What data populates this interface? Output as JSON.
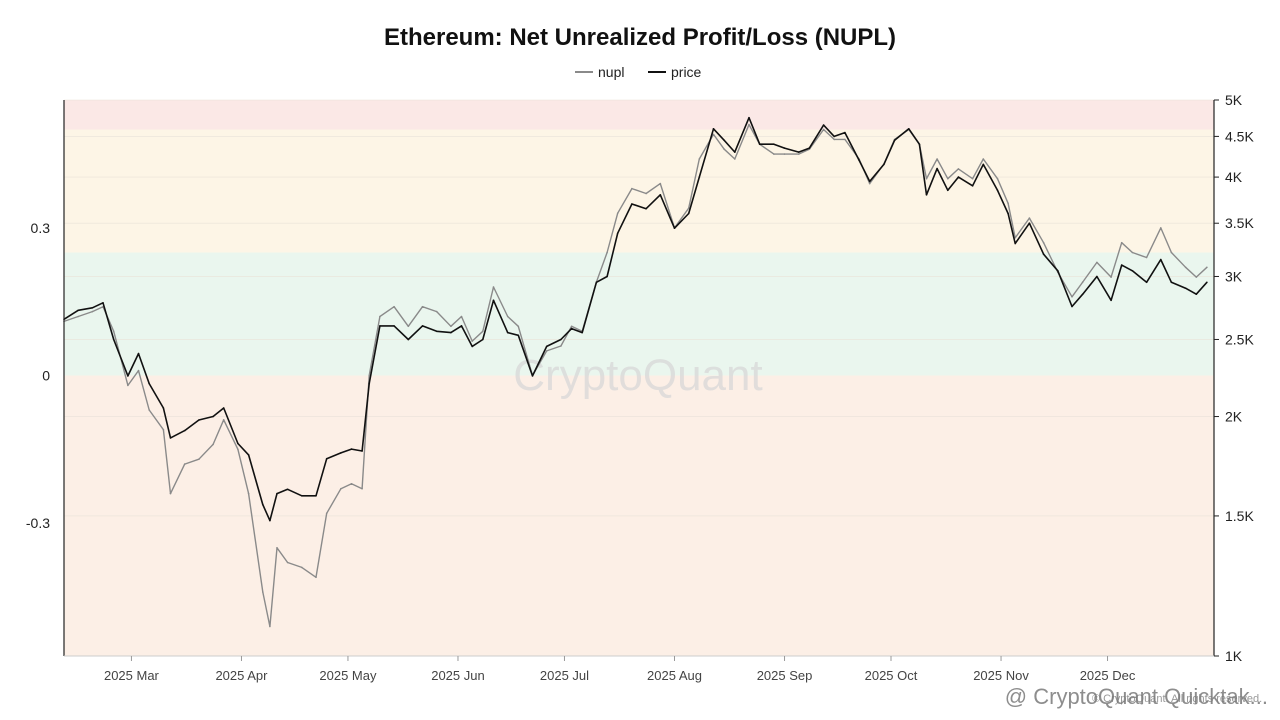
{
  "chart_data": {
    "type": "line",
    "title": "Ethereum: Net Unrealized Profit/Loss (NUPL)",
    "legend": [
      "nupl",
      "price"
    ],
    "legend_position": "top-center",
    "x_range": [
      "2025-02-10",
      "2025-12-31"
    ],
    "x_tick_labels": [
      "2025 Mar",
      "2025 Apr",
      "2025 May",
      "2025 Jun",
      "2025 Jul",
      "2025 Aug",
      "2025 Sep",
      "2025 Oct",
      "2025 Nov",
      "2025 Dec"
    ],
    "y_left": {
      "scale": "linear",
      "range": [
        -0.57,
        0.56
      ],
      "tick_labels": [
        "0.3",
        "0",
        "-0.3"
      ],
      "tick_values": [
        0.3,
        0,
        -0.3
      ]
    },
    "y_right": {
      "scale": "log",
      "range": [
        1000,
        5000
      ],
      "tick_labels": [
        "5K",
        "4.5K",
        "4K",
        "3.5K",
        "3K",
        "2.5K",
        "2K",
        "1.5K",
        "1K"
      ],
      "tick_values": [
        5000,
        4500,
        4000,
        3500,
        3000,
        2500,
        2000,
        1500,
        1000
      ]
    },
    "zones": [
      {
        "from": 0.5,
        "to": 0.56,
        "color": "#fbe8e6"
      },
      {
        "from": 0.25,
        "to": 0.5,
        "color": "#fdf5e6"
      },
      {
        "from": 0.0,
        "to": 0.25,
        "color": "#eaf6ee"
      },
      {
        "from": -0.57,
        "to": 0.0,
        "color": "#fcefe6"
      }
    ],
    "grid": "horizontal-faint",
    "series": [
      {
        "name": "nupl",
        "axis": "left",
        "color": "#8a8a8a",
        "points": [
          [
            "2025-02-10",
            0.11
          ],
          [
            "2025-02-14",
            0.12
          ],
          [
            "2025-02-18",
            0.13
          ],
          [
            "2025-02-21",
            0.14
          ],
          [
            "2025-02-24",
            0.09
          ],
          [
            "2025-02-28",
            -0.02
          ],
          [
            "2025-03-03",
            0.01
          ],
          [
            "2025-03-06",
            -0.07
          ],
          [
            "2025-03-10",
            -0.11
          ],
          [
            "2025-03-12",
            -0.24
          ],
          [
            "2025-03-16",
            -0.18
          ],
          [
            "2025-03-20",
            -0.17
          ],
          [
            "2025-03-24",
            -0.14
          ],
          [
            "2025-03-27",
            -0.09
          ],
          [
            "2025-03-31",
            -0.15
          ],
          [
            "2025-04-03",
            -0.24
          ],
          [
            "2025-04-07",
            -0.44
          ],
          [
            "2025-04-09",
            -0.51
          ],
          [
            "2025-04-11",
            -0.35
          ],
          [
            "2025-04-14",
            -0.38
          ],
          [
            "2025-04-18",
            -0.39
          ],
          [
            "2025-04-22",
            -0.41
          ],
          [
            "2025-04-25",
            -0.28
          ],
          [
            "2025-04-29",
            -0.23
          ],
          [
            "2025-05-02",
            -0.22
          ],
          [
            "2025-05-05",
            -0.23
          ],
          [
            "2025-05-07",
            0.0
          ],
          [
            "2025-05-10",
            0.12
          ],
          [
            "2025-05-14",
            0.14
          ],
          [
            "2025-05-18",
            0.1
          ],
          [
            "2025-05-22",
            0.14
          ],
          [
            "2025-05-26",
            0.13
          ],
          [
            "2025-05-30",
            0.1
          ],
          [
            "2025-06-02",
            0.12
          ],
          [
            "2025-06-05",
            0.07
          ],
          [
            "2025-06-08",
            0.09
          ],
          [
            "2025-06-11",
            0.18
          ],
          [
            "2025-06-15",
            0.12
          ],
          [
            "2025-06-18",
            0.1
          ],
          [
            "2025-06-22",
            0.0
          ],
          [
            "2025-06-26",
            0.05
          ],
          [
            "2025-06-30",
            0.06
          ],
          [
            "2025-07-03",
            0.1
          ],
          [
            "2025-07-06",
            0.09
          ],
          [
            "2025-07-10",
            0.19
          ],
          [
            "2025-07-13",
            0.25
          ],
          [
            "2025-07-16",
            0.33
          ],
          [
            "2025-07-20",
            0.38
          ],
          [
            "2025-07-24",
            0.37
          ],
          [
            "2025-07-28",
            0.39
          ],
          [
            "2025-08-01",
            0.3
          ],
          [
            "2025-08-05",
            0.34
          ],
          [
            "2025-08-08",
            0.44
          ],
          [
            "2025-08-12",
            0.49
          ],
          [
            "2025-08-15",
            0.46
          ],
          [
            "2025-08-18",
            0.44
          ],
          [
            "2025-08-22",
            0.51
          ],
          [
            "2025-08-25",
            0.47
          ],
          [
            "2025-08-29",
            0.45
          ],
          [
            "2025-09-01",
            0.45
          ],
          [
            "2025-09-05",
            0.45
          ],
          [
            "2025-09-08",
            0.46
          ],
          [
            "2025-09-12",
            0.5
          ],
          [
            "2025-09-15",
            0.48
          ],
          [
            "2025-09-18",
            0.48
          ],
          [
            "2025-09-22",
            0.44
          ],
          [
            "2025-09-25",
            0.39
          ],
          [
            "2025-09-29",
            0.43
          ],
          [
            "2025-10-02",
            0.48
          ],
          [
            "2025-10-06",
            0.5
          ],
          [
            "2025-10-09",
            0.47
          ],
          [
            "2025-10-11",
            0.4
          ],
          [
            "2025-10-14",
            0.44
          ],
          [
            "2025-10-17",
            0.4
          ],
          [
            "2025-10-20",
            0.42
          ],
          [
            "2025-10-24",
            0.4
          ],
          [
            "2025-10-27",
            0.44
          ],
          [
            "2025-10-31",
            0.4
          ],
          [
            "2025-11-03",
            0.35
          ],
          [
            "2025-11-05",
            0.28
          ],
          [
            "2025-11-09",
            0.32
          ],
          [
            "2025-11-13",
            0.27
          ],
          [
            "2025-11-17",
            0.21
          ],
          [
            "2025-11-21",
            0.16
          ],
          [
            "2025-11-24",
            0.19
          ],
          [
            "2025-11-28",
            0.23
          ],
          [
            "2025-12-02",
            0.2
          ],
          [
            "2025-12-05",
            0.27
          ],
          [
            "2025-12-08",
            0.25
          ],
          [
            "2025-12-12",
            0.24
          ],
          [
            "2025-12-16",
            0.3
          ],
          [
            "2025-12-19",
            0.25
          ],
          [
            "2025-12-23",
            0.22
          ],
          [
            "2025-12-26",
            0.2
          ],
          [
            "2025-12-29",
            0.22
          ]
        ]
      },
      {
        "name": "price",
        "axis": "right",
        "color": "#111111",
        "points": [
          [
            "2025-02-10",
            2650
          ],
          [
            "2025-02-14",
            2720
          ],
          [
            "2025-02-18",
            2740
          ],
          [
            "2025-02-21",
            2780
          ],
          [
            "2025-02-24",
            2500
          ],
          [
            "2025-02-28",
            2250
          ],
          [
            "2025-03-03",
            2400
          ],
          [
            "2025-03-06",
            2200
          ],
          [
            "2025-03-10",
            2050
          ],
          [
            "2025-03-12",
            1880
          ],
          [
            "2025-03-16",
            1920
          ],
          [
            "2025-03-20",
            1980
          ],
          [
            "2025-03-24",
            2000
          ],
          [
            "2025-03-27",
            2050
          ],
          [
            "2025-03-31",
            1850
          ],
          [
            "2025-04-03",
            1790
          ],
          [
            "2025-04-07",
            1550
          ],
          [
            "2025-04-09",
            1480
          ],
          [
            "2025-04-11",
            1600
          ],
          [
            "2025-04-14",
            1620
          ],
          [
            "2025-04-18",
            1590
          ],
          [
            "2025-04-22",
            1590
          ],
          [
            "2025-04-25",
            1770
          ],
          [
            "2025-04-29",
            1800
          ],
          [
            "2025-05-02",
            1820
          ],
          [
            "2025-05-05",
            1810
          ],
          [
            "2025-05-07",
            2200
          ],
          [
            "2025-05-10",
            2600
          ],
          [
            "2025-05-14",
            2600
          ],
          [
            "2025-05-18",
            2500
          ],
          [
            "2025-05-22",
            2600
          ],
          [
            "2025-05-26",
            2560
          ],
          [
            "2025-05-30",
            2550
          ],
          [
            "2025-06-02",
            2600
          ],
          [
            "2025-06-05",
            2450
          ],
          [
            "2025-06-08",
            2500
          ],
          [
            "2025-06-11",
            2800
          ],
          [
            "2025-06-15",
            2550
          ],
          [
            "2025-06-18",
            2530
          ],
          [
            "2025-06-22",
            2250
          ],
          [
            "2025-06-26",
            2450
          ],
          [
            "2025-06-30",
            2500
          ],
          [
            "2025-07-03",
            2580
          ],
          [
            "2025-07-06",
            2550
          ],
          [
            "2025-07-10",
            2950
          ],
          [
            "2025-07-13",
            3000
          ],
          [
            "2025-07-16",
            3400
          ],
          [
            "2025-07-20",
            3700
          ],
          [
            "2025-07-24",
            3650
          ],
          [
            "2025-07-28",
            3800
          ],
          [
            "2025-08-01",
            3450
          ],
          [
            "2025-08-05",
            3600
          ],
          [
            "2025-08-08",
            4000
          ],
          [
            "2025-08-12",
            4600
          ],
          [
            "2025-08-15",
            4450
          ],
          [
            "2025-08-18",
            4300
          ],
          [
            "2025-08-22",
            4750
          ],
          [
            "2025-08-25",
            4400
          ],
          [
            "2025-08-29",
            4400
          ],
          [
            "2025-09-01",
            4350
          ],
          [
            "2025-09-05",
            4300
          ],
          [
            "2025-09-08",
            4350
          ],
          [
            "2025-09-12",
            4650
          ],
          [
            "2025-09-15",
            4500
          ],
          [
            "2025-09-18",
            4550
          ],
          [
            "2025-09-22",
            4200
          ],
          [
            "2025-09-25",
            3950
          ],
          [
            "2025-09-29",
            4150
          ],
          [
            "2025-10-02",
            4450
          ],
          [
            "2025-10-06",
            4600
          ],
          [
            "2025-10-09",
            4400
          ],
          [
            "2025-10-11",
            3800
          ],
          [
            "2025-10-14",
            4100
          ],
          [
            "2025-10-17",
            3850
          ],
          [
            "2025-10-20",
            4000
          ],
          [
            "2025-10-24",
            3900
          ],
          [
            "2025-10-27",
            4150
          ],
          [
            "2025-10-31",
            3850
          ],
          [
            "2025-11-03",
            3600
          ],
          [
            "2025-11-05",
            3300
          ],
          [
            "2025-11-09",
            3500
          ],
          [
            "2025-11-13",
            3200
          ],
          [
            "2025-11-17",
            3050
          ],
          [
            "2025-11-21",
            2750
          ],
          [
            "2025-11-24",
            2850
          ],
          [
            "2025-11-28",
            3000
          ],
          [
            "2025-12-02",
            2800
          ],
          [
            "2025-12-05",
            3100
          ],
          [
            "2025-12-08",
            3050
          ],
          [
            "2025-12-12",
            2950
          ],
          [
            "2025-12-16",
            3150
          ],
          [
            "2025-12-19",
            2950
          ],
          [
            "2025-12-23",
            2900
          ],
          [
            "2025-12-26",
            2850
          ],
          [
            "2025-12-29",
            2950
          ]
        ]
      }
    ],
    "watermark": "CryptoQuant",
    "footer_small": "© CryptoQuant. All rights reserved.",
    "footer_credit": "@ CryptoQuant Quicktak..."
  }
}
